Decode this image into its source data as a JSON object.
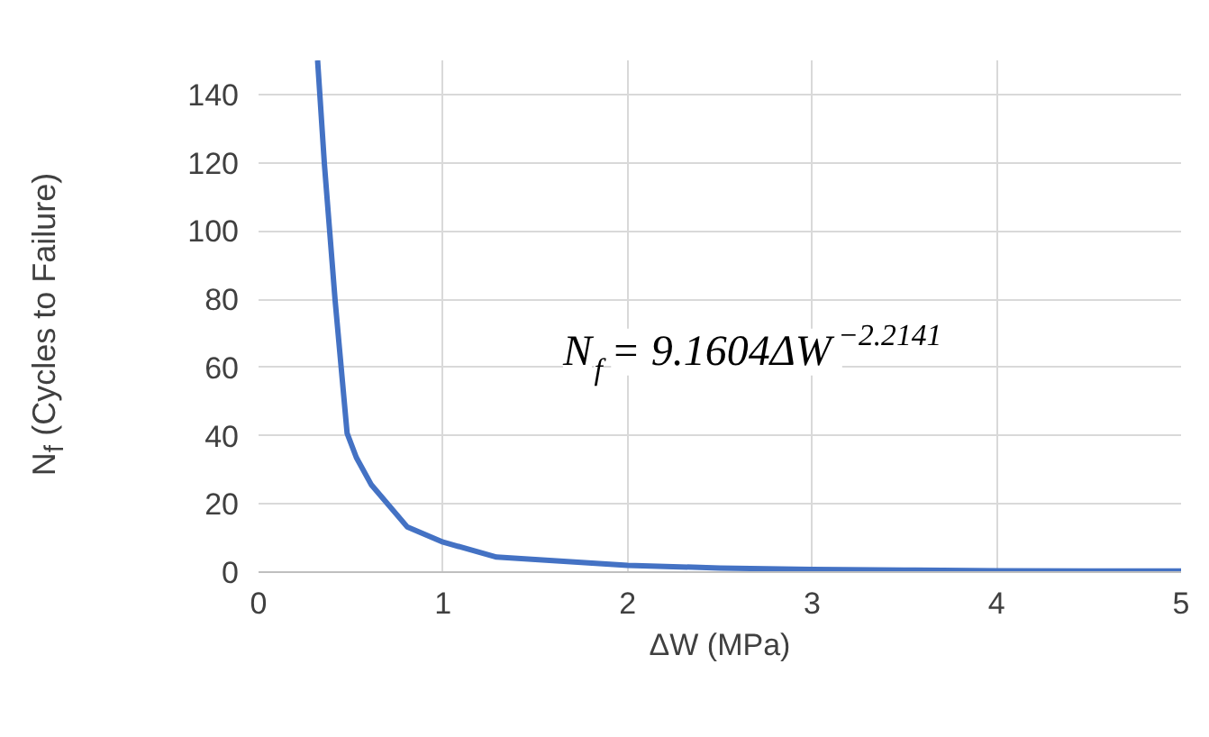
{
  "chart_data": {
    "type": "line",
    "xlabel": "ΔW (MPa)",
    "ylabel": "N$_{f}$ (Cycles to Failure)",
    "x": [
      0.32,
      0.357,
      0.415,
      0.48,
      0.53,
      0.61,
      0.805,
      1.0,
      1.29,
      1.5,
      2.0,
      2.5,
      3.0,
      3.5,
      4.0,
      4.5,
      5.0
    ],
    "series": [
      {
        "color": "#4472c4",
        "values": [
          150,
          119.5,
          79.6,
          40.7,
          33.6,
          25.7,
          13.3,
          8.8,
          4.4,
          3.7,
          2.0,
          1.2,
          0.8,
          0.6,
          0.4,
          0.3,
          0.3
        ]
      }
    ],
    "xlim": [
      0,
      5
    ],
    "ylim": [
      0,
      150
    ],
    "xticks": [
      0,
      1,
      2,
      3,
      4,
      5
    ],
    "yticks": [
      0,
      20,
      40,
      60,
      80,
      100,
      120,
      140
    ],
    "grid": true,
    "marker": "none",
    "line_style": "solid",
    "annotations": [
      "N$_{f}$ = 9.1604ΔW$^{−2.2141}$"
    ]
  }
}
